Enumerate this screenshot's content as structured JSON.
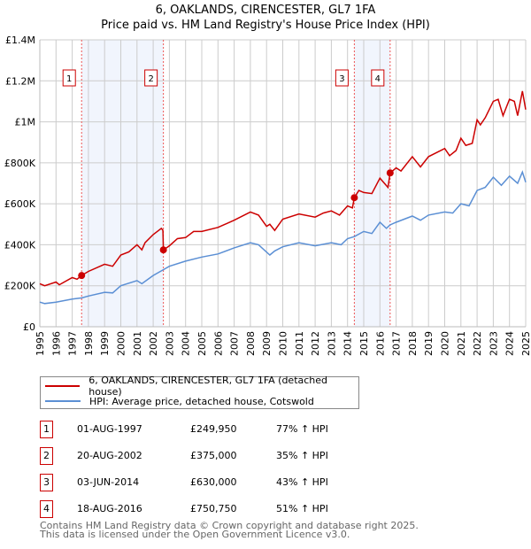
{
  "title": "6, OAKLANDS, CIRENCESTER, GL7 1FA",
  "subtitle": "Price paid vs. HM Land Registry's House Price Index (HPI)",
  "legend": [
    {
      "label": "6, OAKLANDS, CIRENCESTER, GL7 1FA (detached house)",
      "color": "#cc0000"
    },
    {
      "label": "HPI: Average price, detached house, Cotswold",
      "color": "#5b8fd4"
    }
  ],
  "sales": [
    {
      "num": "1",
      "date": "01-AUG-1997",
      "price": "£249,950",
      "hpi": "77% ↑ HPI",
      "x": 1997.58,
      "y": 249950
    },
    {
      "num": "2",
      "date": "20-AUG-2002",
      "price": "£375,000",
      "hpi": "35% ↑ HPI",
      "x": 2002.63,
      "y": 375000
    },
    {
      "num": "3",
      "date": "03-JUN-2014",
      "price": "£630,000",
      "hpi": "43% ↑ HPI",
      "x": 2014.42,
      "y": 630000
    },
    {
      "num": "4",
      "date": "18-AUG-2016",
      "price": "£750,750",
      "hpi": "51% ↑ HPI",
      "x": 2016.63,
      "y": 750750
    }
  ],
  "footer": [
    "Contains HM Land Registry data © Crown copyright and database right 2025.",
    "This data is licensed under the Open Government Licence v3.0."
  ],
  "chart_data": {
    "type": "line",
    "title": "6, OAKLANDS, CIRENCESTER, GL7 1FA",
    "subtitle": "Price paid vs. HM Land Registry's House Price Index (HPI)",
    "xlim": [
      1995,
      2025
    ],
    "ylim": [
      0,
      1400000
    ],
    "xticks": [
      "1995",
      "1996",
      "1997",
      "1998",
      "1999",
      "2000",
      "2001",
      "2002",
      "2003",
      "2004",
      "2005",
      "2006",
      "2007",
      "2008",
      "2009",
      "2010",
      "2011",
      "2012",
      "2013",
      "2014",
      "2015",
      "2016",
      "2017",
      "2018",
      "2019",
      "2020",
      "2021",
      "2022",
      "2023",
      "2024",
      "2025"
    ],
    "yticks": [
      {
        "v": 0,
        "label": "£0"
      },
      {
        "v": 200000,
        "label": "£200K"
      },
      {
        "v": 400000,
        "label": "£400K"
      },
      {
        "v": 600000,
        "label": "£600K"
      },
      {
        "v": 800000,
        "label": "£800K"
      },
      {
        "v": 1000000,
        "label": "£1M"
      },
      {
        "v": 1200000,
        "label": "£1.2M"
      },
      {
        "v": 1400000,
        "label": "£1.4M"
      }
    ],
    "grid": true,
    "shaded_ranges": [
      [
        1997.58,
        2002.63
      ],
      [
        2014.42,
        2016.63
      ]
    ],
    "series": [
      {
        "name": "6, OAKLANDS, CIRENCESTER, GL7 1FA (detached house)",
        "color": "#cc0000",
        "x": [
          1995,
          1995.3,
          1996,
          1996.2,
          1997,
          1997.3,
          1997.58,
          1998,
          1999,
          1999.5,
          2000,
          2000.5,
          2001,
          2001.3,
          2001.5,
          2002,
          2002.5,
          2002.6,
          2002.63,
          2003,
          2003.5,
          2004,
          2004.5,
          2005,
          2006,
          2007,
          2008,
          2008.5,
          2009,
          2009.2,
          2009.5,
          2010,
          2011,
          2012,
          2012.5,
          2013,
          2013.5,
          2014,
          2014.3,
          2014.42,
          2014.7,
          2015,
          2015.5,
          2016,
          2016.5,
          2016.63,
          2017,
          2017.3,
          2018,
          2018.5,
          2019,
          2020,
          2020.3,
          2020.7,
          2021,
          2021.3,
          2021.7,
          2022,
          2022.2,
          2022.5,
          2023,
          2023.3,
          2023.6,
          2024,
          2024.3,
          2024.5,
          2024.8,
          2025
        ],
        "y": [
          210000,
          200000,
          218000,
          205000,
          240000,
          232000,
          250000,
          270000,
          305000,
          295000,
          350000,
          365000,
          400000,
          375000,
          410000,
          450000,
          480000,
          470000,
          375000,
          395000,
          430000,
          435000,
          465000,
          465000,
          485000,
          520000,
          560000,
          545000,
          490000,
          500000,
          470000,
          525000,
          550000,
          535000,
          555000,
          565000,
          545000,
          590000,
          580000,
          630000,
          665000,
          655000,
          650000,
          725000,
          680000,
          750000,
          775000,
          760000,
          830000,
          780000,
          830000,
          870000,
          835000,
          860000,
          920000,
          885000,
          895000,
          1010000,
          985000,
          1020000,
          1100000,
          1110000,
          1030000,
          1110000,
          1100000,
          1030000,
          1150000,
          1060000
        ]
      },
      {
        "name": "HPI: Average price, detached house, Cotswold",
        "color": "#5b8fd4",
        "x": [
          1995,
          1995.3,
          1996,
          1997,
          1997.6,
          1998,
          1999,
          1999.5,
          2000,
          2001,
          2001.3,
          2002,
          2002.6,
          2003,
          2004,
          2005,
          2006,
          2007,
          2008,
          2008.5,
          2009.2,
          2009.5,
          2010,
          2011,
          2012,
          2013,
          2013.6,
          2014,
          2014.42,
          2015,
          2015.5,
          2016,
          2016.4,
          2016.63,
          2017,
          2018,
          2018.5,
          2019,
          2020,
          2020.5,
          2021,
          2021.5,
          2022,
          2022.5,
          2023,
          2023.5,
          2024,
          2024.5,
          2024.8,
          2025
        ],
        "y": [
          120000,
          113000,
          120000,
          135000,
          141000,
          150000,
          168000,
          165000,
          200000,
          225000,
          210000,
          250000,
          277000,
          295000,
          320000,
          340000,
          355000,
          385000,
          410000,
          400000,
          350000,
          370000,
          390000,
          410000,
          395000,
          410000,
          400000,
          430000,
          440000,
          465000,
          455000,
          510000,
          480000,
          497000,
          510000,
          540000,
          520000,
          545000,
          560000,
          555000,
          600000,
          590000,
          665000,
          680000,
          730000,
          690000,
          735000,
          700000,
          755000,
          705000
        ]
      }
    ]
  }
}
